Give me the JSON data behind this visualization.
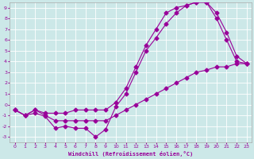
{
  "xlabel": "Windchill (Refroidissement éolien,°C)",
  "ylabel": "",
  "bg_color": "#cce8e8",
  "line_color": "#990099",
  "grid_color": "#ffffff",
  "xlim": [
    -0.5,
    23.5
  ],
  "ylim": [
    -3.5,
    9.5
  ],
  "xticks": [
    0,
    1,
    2,
    3,
    4,
    5,
    6,
    7,
    8,
    9,
    10,
    11,
    12,
    13,
    14,
    15,
    16,
    17,
    18,
    19,
    20,
    21,
    22,
    23
  ],
  "yticks": [
    -3,
    -2,
    -1,
    0,
    1,
    2,
    3,
    4,
    5,
    6,
    7,
    8,
    9
  ],
  "line1_x": [
    0,
    1,
    2,
    3,
    4,
    5,
    6,
    7,
    8,
    9,
    10,
    11,
    12,
    13,
    14,
    15,
    16,
    17,
    18,
    19,
    20,
    21,
    22,
    23
  ],
  "line1_y": [
    -0.5,
    -1.0,
    -0.8,
    -1.1,
    -2.2,
    -2.0,
    -2.2,
    -2.2,
    -3.0,
    -2.3,
    -0.2,
    1.0,
    3.0,
    5.0,
    6.2,
    7.5,
    8.5,
    9.2,
    9.5,
    9.5,
    8.5,
    6.7,
    4.5,
    3.8
  ],
  "line2_x": [
    0,
    1,
    2,
    3,
    4,
    5,
    6,
    7,
    8,
    9,
    10,
    11,
    12,
    13,
    14,
    15,
    16,
    17,
    18,
    19,
    20,
    21,
    22,
    23
  ],
  "line2_y": [
    -0.5,
    -1.0,
    -0.5,
    -0.8,
    -0.8,
    -0.8,
    -0.5,
    -0.5,
    -0.5,
    -0.5,
    0.2,
    1.5,
    3.5,
    5.5,
    7.0,
    8.5,
    9.0,
    9.2,
    9.5,
    9.5,
    8.0,
    6.0,
    4.0,
    3.8
  ],
  "line3_x": [
    0,
    1,
    2,
    3,
    4,
    5,
    6,
    7,
    8,
    9,
    10,
    11,
    12,
    13,
    14,
    15,
    16,
    17,
    18,
    19,
    20,
    21,
    22,
    23
  ],
  "line3_y": [
    -0.5,
    -1.0,
    -0.5,
    -1.0,
    -1.5,
    -1.5,
    -1.5,
    -1.5,
    -1.5,
    -1.5,
    -1.0,
    -0.5,
    0.0,
    0.5,
    1.0,
    1.5,
    2.0,
    2.5,
    3.0,
    3.2,
    3.5,
    3.5,
    3.8,
    3.8
  ]
}
